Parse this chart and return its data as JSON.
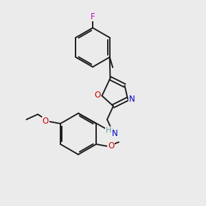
{
  "background_color": "#ebebeb",
  "bond_color": "#1a1a1a",
  "figsize": [
    3.0,
    3.0
  ],
  "dpi": 100,
  "F_color": "#cc00cc",
  "O_color": "#cc0000",
  "N_color": "#0000cc",
  "H_color": "#5f9ea0",
  "xlim": [
    0,
    10
  ],
  "ylim": [
    0,
    10
  ]
}
